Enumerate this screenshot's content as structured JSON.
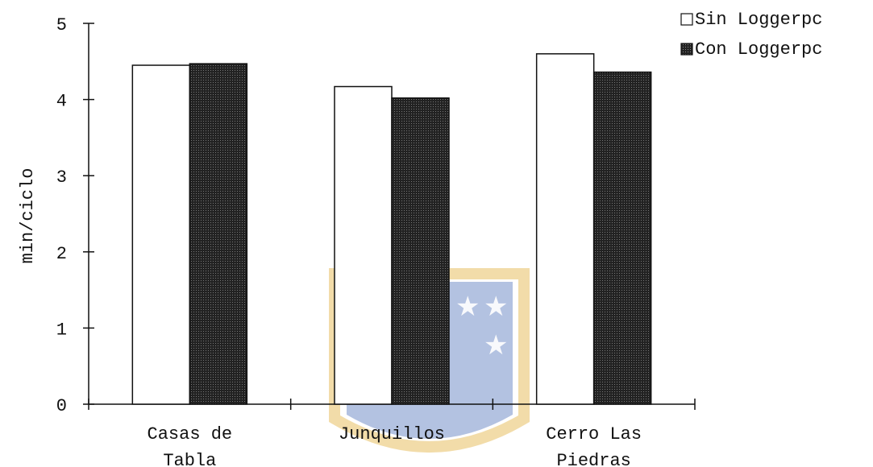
{
  "chart_data": {
    "type": "bar",
    "title": "",
    "xlabel": "",
    "ylabel": "min/ciclo",
    "ylim": [
      0,
      5
    ],
    "yticks": [
      0,
      1,
      2,
      3,
      4,
      5
    ],
    "grid": false,
    "legend_position": "top-right",
    "categories": [
      [
        "Casas de",
        "Tabla"
      ],
      [
        "Junquillos"
      ],
      [
        "Cerro Las",
        "Piedras"
      ]
    ],
    "series": [
      {
        "name": "Sin Loggerpc",
        "values": [
          4.45,
          4.17,
          4.6
        ],
        "color": "#ffffff",
        "pattern": "none"
      },
      {
        "name": "Con Loggerpc",
        "values": [
          4.47,
          4.02,
          4.36
        ],
        "color": "#1a1a1a",
        "pattern": "dotted"
      }
    ]
  },
  "watermark": {
    "name": "university-crest",
    "colors": {
      "blue": "#3a5fb0",
      "gold": "#e8c064",
      "red": "#b03a2e"
    }
  }
}
